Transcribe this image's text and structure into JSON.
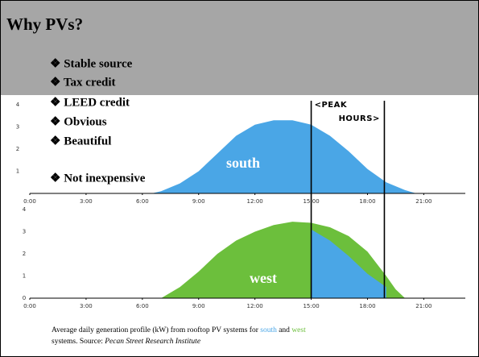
{
  "title": "Why PVs?",
  "bullets": [
    "❖ Stable source",
    "❖ Tax credit",
    "❖ LEED credit",
    "❖ Obvious",
    "❖ Beautiful",
    "❖ Not inexpensive"
  ],
  "chart_data": [
    {
      "type": "area",
      "series": [
        {
          "name": "south",
          "color": "#4aa6e6",
          "x": [
            6.5,
            7,
            8,
            9,
            10,
            11,
            12,
            13,
            14,
            15,
            16,
            17,
            18,
            19,
            20,
            20.6
          ],
          "values": [
            0,
            0.1,
            0.45,
            1.0,
            1.8,
            2.6,
            3.1,
            3.3,
            3.3,
            3.1,
            2.6,
            1.9,
            1.1,
            0.5,
            0.15,
            0
          ]
        }
      ],
      "xlim": [
        0,
        23
      ],
      "ylim": [
        0,
        4
      ],
      "xticks": [
        {
          "value": 0,
          "label": "0:00"
        },
        {
          "value": 3,
          "label": "3:00"
        },
        {
          "value": 6,
          "label": "6:00"
        },
        {
          "value": 9,
          "label": "9:00"
        },
        {
          "value": 12,
          "label": "12:00"
        },
        {
          "value": 15,
          "label": "15:00"
        },
        {
          "value": 18,
          "label": "18:00"
        },
        {
          "value": 21,
          "label": "21:00"
        }
      ],
      "yticks": [
        1,
        2,
        3,
        4
      ]
    },
    {
      "type": "area",
      "series": [
        {
          "name": "west",
          "color": "#6cbf3c",
          "x": [
            7,
            8,
            9,
            10,
            11,
            12,
            13,
            14,
            15,
            16,
            17,
            18,
            19,
            19.5,
            20
          ],
          "values": [
            0,
            0.5,
            1.2,
            2.0,
            2.6,
            3.0,
            3.3,
            3.45,
            3.4,
            3.2,
            2.8,
            2.1,
            1.0,
            0.4,
            0
          ]
        },
        {
          "name": "south",
          "color": "#4aa6e6",
          "x": [
            15,
            16,
            17,
            18,
            19
          ],
          "values": [
            3.1,
            2.6,
            1.9,
            1.1,
            0.5
          ]
        }
      ],
      "xlim": [
        0,
        23
      ],
      "ylim": [
        0,
        4
      ],
      "xticks": [
        {
          "value": 0,
          "label": "0:00"
        },
        {
          "value": 3,
          "label": "3:00"
        },
        {
          "value": 6,
          "label": "6:00"
        },
        {
          "value": 9,
          "label": "9:00"
        },
        {
          "value": 12,
          "label": "12:00"
        },
        {
          "value": 15,
          "label": "15:00"
        },
        {
          "value": 18,
          "label": "18:00"
        },
        {
          "value": 21,
          "label": "21:00"
        }
      ],
      "yticks": [
        0,
        1,
        2,
        3,
        4
      ]
    }
  ],
  "annotation": {
    "lines": [
      "<PEAK",
      "HOURS>"
    ],
    "x": [
      15,
      18.9
    ]
  },
  "caption": {
    "line1": "Average daily generation profile (kW) from rooftop PV systems for",
    "south": "south",
    "and": "and",
    "west": "west",
    "line2": "systems. Source:",
    "source": "Pecan Street Research Institute"
  }
}
